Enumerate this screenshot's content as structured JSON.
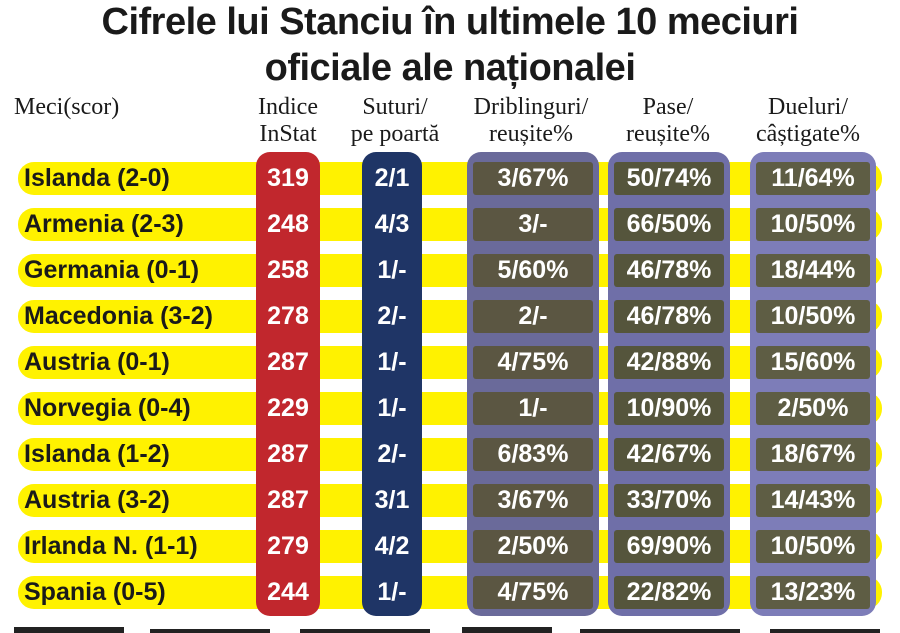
{
  "title_line1": "Cifrele lui Stanciu în ultimele 10 meciuri",
  "title_line2": "oficiale ale naționalei",
  "colors": {
    "band": "#fff200",
    "instat": "#c1272d",
    "suturi": "#1f3566",
    "driblinguri": "#6a6a9a",
    "driblinguri_row": "#5b5642",
    "pase": "#6f6fa8",
    "pase_row": "#55553c",
    "dueluri": "#7d7db8",
    "dueluri_row": "#5e5d44"
  },
  "chart_data": {
    "type": "table",
    "headers": {
      "meci": "Meci(scor)",
      "instat": [
        "Indice",
        "InStat"
      ],
      "suturi": [
        "Suturi/",
        "pe poartă"
      ],
      "driblinguri": [
        "Driblinguri/",
        "reușite%"
      ],
      "pase": [
        "Pase/",
        "reușite%"
      ],
      "dueluri": [
        "Dueluri/",
        "câștigate%"
      ]
    },
    "rows": [
      {
        "meci": "Islanda (2-0)",
        "instat": "319",
        "suturi": "2/1",
        "driblinguri": "3/67%",
        "pase": "50/74%",
        "dueluri": "11/64%"
      },
      {
        "meci": "Armenia (2-3)",
        "instat": "248",
        "suturi": "4/3",
        "driblinguri": "3/-",
        "pase": "66/50%",
        "dueluri": "10/50%"
      },
      {
        "meci": "Germania (0-1)",
        "instat": "258",
        "suturi": "1/-",
        "driblinguri": "5/60%",
        "pase": "46/78%",
        "dueluri": "18/44%"
      },
      {
        "meci": "Macedonia (3-2)",
        "instat": "278",
        "suturi": "2/-",
        "driblinguri": "2/-",
        "pase": "46/78%",
        "dueluri": "10/50%"
      },
      {
        "meci": "Austria (0-1)",
        "instat": "287",
        "suturi": "1/-",
        "driblinguri": "4/75%",
        "pase": "42/88%",
        "dueluri": "15/60%"
      },
      {
        "meci": "Norvegia (0-4)",
        "instat": "229",
        "suturi": "1/-",
        "driblinguri": "1/-",
        "pase": "10/90%",
        "dueluri": "2/50%"
      },
      {
        "meci": "Islanda (1-2)",
        "instat": "287",
        "suturi": "2/-",
        "driblinguri": "6/83%",
        "pase": "42/67%",
        "dueluri": "18/67%"
      },
      {
        "meci": "Austria (3-2)",
        "instat": "287",
        "suturi": "3/1",
        "driblinguri": "3/67%",
        "pase": "33/70%",
        "dueluri": "14/43%"
      },
      {
        "meci": "Irlanda N. (1-1)",
        "instat": "279",
        "suturi": "4/2",
        "driblinguri": "2/50%",
        "pase": "69/90%",
        "dueluri": "10/50%"
      },
      {
        "meci": "Spania (0-5)",
        "instat": "244",
        "suturi": "1/-",
        "driblinguri": "4/75%",
        "pase": "22/82%",
        "dueluri": "13/23%"
      }
    ]
  }
}
